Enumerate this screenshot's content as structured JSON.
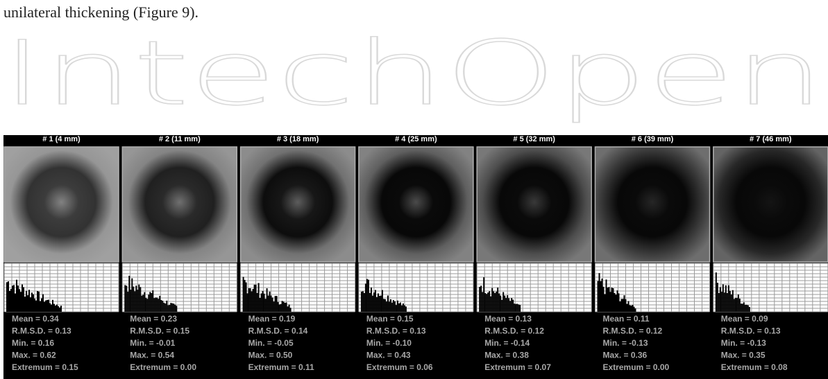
{
  "text": "unilateral thickening (Figure 9).",
  "watermark": "IntechOpen",
  "panels": [
    {
      "title": "# 1 (4 mm)",
      "stats": [
        "Mean = 0.34",
        "R.M.S.D. = 0.13",
        "Min. = 0.16",
        "Max. = 0.62",
        "Extremum = 0.15"
      ]
    },
    {
      "title": "# 2 (11 mm)",
      "stats": [
        "Mean = 0.23",
        "R.M.S.D. = 0.15",
        "Min. = -0.01",
        "Max. = 0.54",
        "Extremum = 0.00"
      ]
    },
    {
      "title": "# 3 (18 mm)",
      "stats": [
        "Mean = 0.19",
        "R.M.S.D. = 0.14",
        "Min. = -0.05",
        "Max. = 0.50",
        "Extremum = 0.11"
      ]
    },
    {
      "title": "# 4 (25 mm)",
      "stats": [
        "Mean = 0.15",
        "R.M.S.D. = 0.13",
        "Min. = -0.10",
        "Max. = 0.43",
        "Extremum = 0.06"
      ]
    },
    {
      "title": "# 5 (32 mm)",
      "stats": [
        "Mean = 0.13",
        "R.M.S.D. = 0.12",
        "Min. = -0.14",
        "Max. = 0.38",
        "Extremum = 0.07"
      ]
    },
    {
      "title": "# 6 (39 mm)",
      "stats": [
        "Mean = 0.11",
        "R.M.S.D. = 0.12",
        "Min. = -0.13",
        "Max. = 0.36",
        "Extremum = 0.00"
      ]
    },
    {
      "title": "# 7 (46 mm)",
      "stats": [
        "Mean = 0.09",
        "R.M.S.D. = 0.13",
        "Min. = -0.13",
        "Max. = 0.35",
        "Extremum = 0.08"
      ]
    }
  ]
}
